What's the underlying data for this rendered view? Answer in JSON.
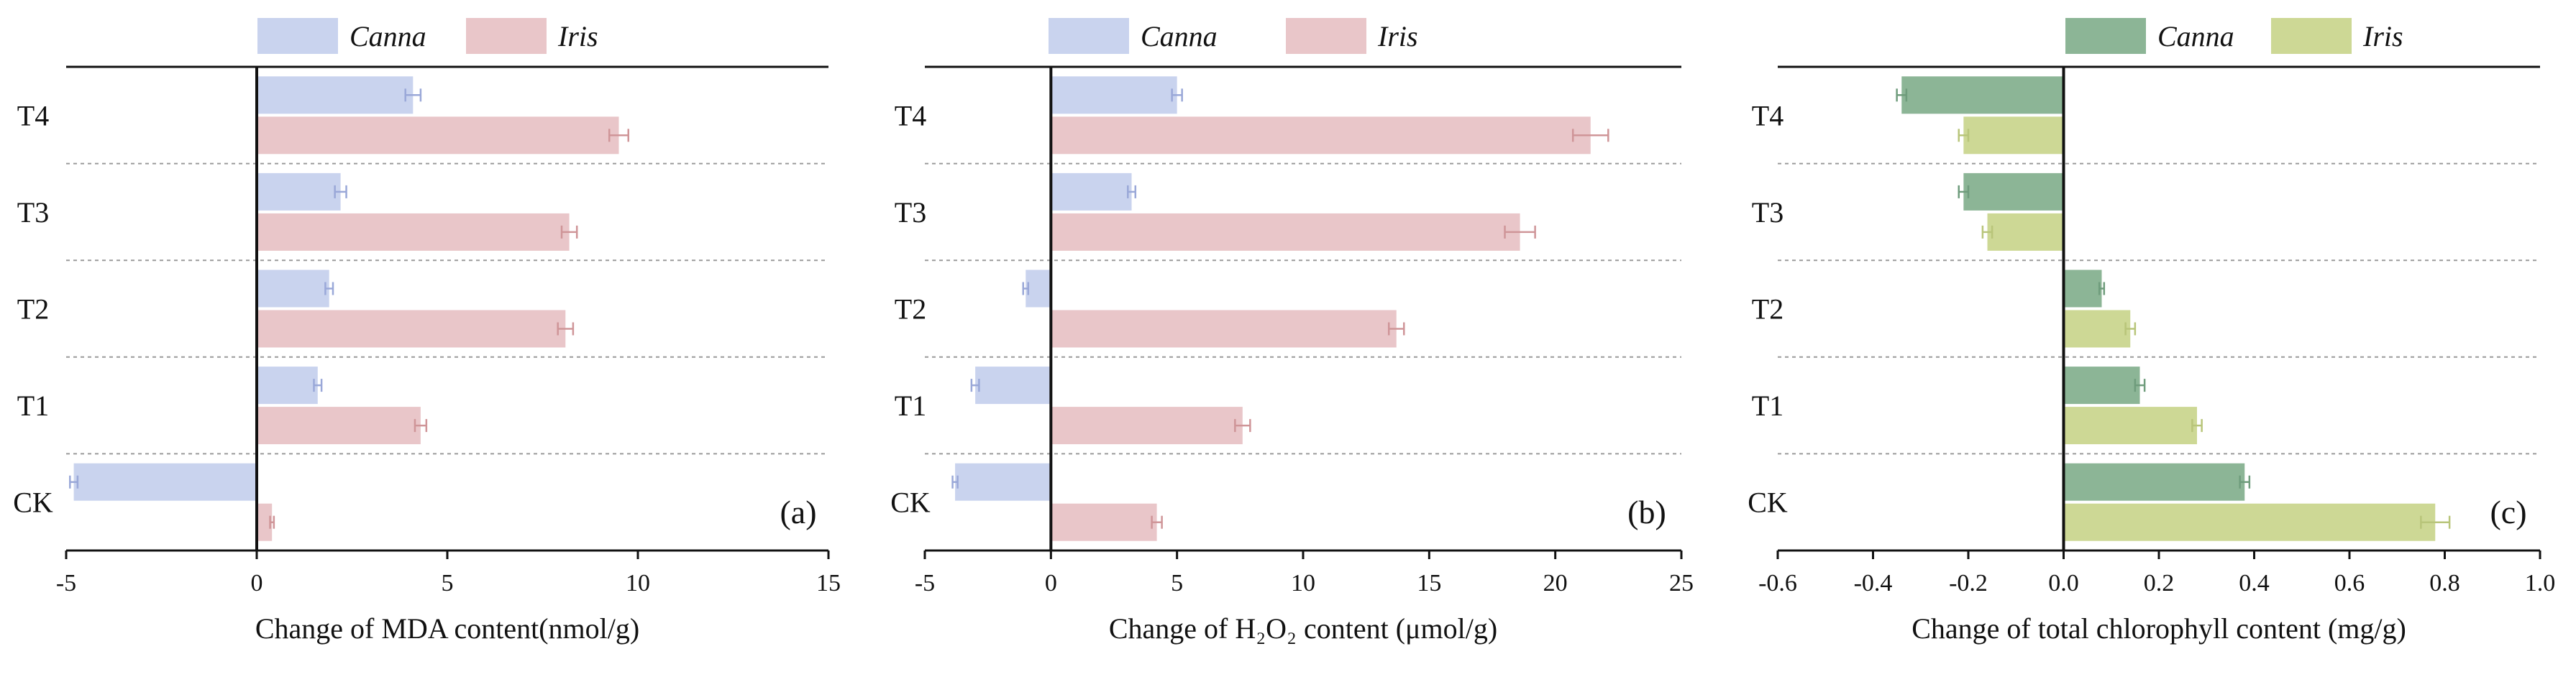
{
  "figure": {
    "panels": [
      {
        "tag": "(a)",
        "colors": {
          "Canna": "#c9d3ee",
          "Iris": "#e9c6c9",
          "errbar_Canna": "#9aa8d8",
          "errbar_Iris": "#cf9598"
        },
        "legend": [
          "Canna",
          "Iris"
        ]
      },
      {
        "tag": "(b)",
        "colors": {
          "Canna": "#c9d3ee",
          "Iris": "#e9c6c9",
          "errbar_Canna": "#9aa8d8",
          "errbar_Iris": "#cf9598"
        },
        "legend": [
          "Canna",
          "Iris"
        ]
      },
      {
        "tag": "(c)",
        "colors": {
          "Canna": "#8cb596",
          "Iris": "#cdd895",
          "errbar_Canna": "#6f9c7c",
          "errbar_Iris": "#b8c57a"
        },
        "legend": [
          "Canna",
          "Iris"
        ]
      }
    ]
  },
  "chart_data": [
    {
      "type": "bar",
      "orientation": "horizontal",
      "title": "",
      "xlabel": "Change of MDA content(nmol/g)",
      "ylabel": "",
      "xlim": [
        -5,
        15
      ],
      "xticks": [
        -5,
        0,
        5,
        10,
        15
      ],
      "categories": [
        "T4",
        "T3",
        "T2",
        "T1",
        "CK"
      ],
      "series": [
        {
          "name": "Canna",
          "values": [
            4.1,
            2.2,
            1.9,
            1.6,
            -4.8
          ],
          "errors": [
            0.2,
            0.15,
            0.1,
            0.1,
            0.1
          ]
        },
        {
          "name": "Iris",
          "values": [
            9.5,
            8.2,
            8.1,
            4.3,
            0.4
          ],
          "errors": [
            0.25,
            0.2,
            0.2,
            0.15,
            0.05
          ]
        }
      ],
      "grid": "dashed horizontal separators between categories",
      "legend_position": "top-center"
    },
    {
      "type": "bar",
      "orientation": "horizontal",
      "title": "",
      "xlabel": "Change of H₂O₂ content (μmol/g)",
      "ylabel": "",
      "xlim": [
        -5,
        25
      ],
      "xticks": [
        -5,
        0,
        5,
        10,
        15,
        20,
        25
      ],
      "categories": [
        "T4",
        "T3",
        "T2",
        "T1",
        "CK"
      ],
      "series": [
        {
          "name": "Canna",
          "values": [
            5.0,
            3.2,
            -1.0,
            -3.0,
            -3.8
          ],
          "errors": [
            0.2,
            0.15,
            0.1,
            0.15,
            0.1
          ]
        },
        {
          "name": "Iris",
          "values": [
            21.4,
            18.6,
            13.7,
            7.6,
            4.2
          ],
          "errors": [
            0.7,
            0.6,
            0.3,
            0.3,
            0.2
          ]
        }
      ],
      "grid": "dashed horizontal separators between categories",
      "legend_position": "top-center"
    },
    {
      "type": "bar",
      "orientation": "horizontal",
      "title": "",
      "xlabel": "Change of total chlorophyll content (mg/g)",
      "ylabel": "",
      "xlim": [
        -0.6,
        1.0
      ],
      "xticks": [
        -0.6,
        -0.4,
        -0.2,
        0.0,
        0.2,
        0.4,
        0.6,
        0.8,
        1.0
      ],
      "categories": [
        "T4",
        "T3",
        "T2",
        "T1",
        "CK"
      ],
      "series": [
        {
          "name": "Canna",
          "values": [
            -0.34,
            -0.21,
            0.08,
            0.16,
            0.38
          ],
          "errors": [
            0.01,
            0.01,
            0.005,
            0.01,
            0.01
          ]
        },
        {
          "name": "Iris",
          "values": [
            -0.21,
            -0.16,
            0.14,
            0.28,
            0.78
          ],
          "errors": [
            0.01,
            0.01,
            0.01,
            0.01,
            0.03
          ]
        }
      ],
      "grid": "dashed horizontal separators between categories",
      "legend_position": "top-center"
    }
  ]
}
